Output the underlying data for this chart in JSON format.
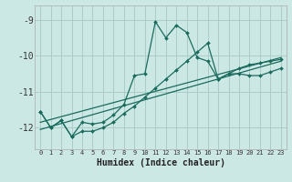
{
  "xlabel": "Humidex (Indice chaleur)",
  "bg_color": "#cce8e4",
  "line_color": "#1a6b5e",
  "grid_color": "#aaccc8",
  "xlim": [
    -0.5,
    23.5
  ],
  "ylim": [
    -12.6,
    -8.6
  ],
  "yticks": [
    -12,
    -11,
    -10,
    -9
  ],
  "xticks": [
    0,
    1,
    2,
    3,
    4,
    5,
    6,
    7,
    8,
    9,
    10,
    11,
    12,
    13,
    14,
    15,
    16,
    17,
    18,
    19,
    20,
    21,
    22,
    23
  ],
  "series1_x": [
    0,
    1,
    2,
    3,
    4,
    5,
    6,
    7,
    8,
    9,
    10,
    11,
    12,
    13,
    14,
    15,
    16,
    17,
    18,
    19,
    20,
    21,
    22,
    23
  ],
  "series1_y": [
    -11.55,
    -12.0,
    -11.8,
    -12.25,
    -11.85,
    -11.9,
    -11.85,
    -11.65,
    -11.35,
    -10.55,
    -10.5,
    -9.05,
    -9.5,
    -9.15,
    -9.35,
    -10.05,
    -10.15,
    -10.65,
    -10.5,
    -10.5,
    -10.55,
    -10.55,
    -10.45,
    -10.35
  ],
  "series2_x": [
    0,
    1,
    2,
    3,
    4,
    5,
    6,
    7,
    8,
    9,
    10,
    11,
    12,
    13,
    14,
    15,
    16,
    17,
    18,
    19,
    20,
    21,
    22,
    23
  ],
  "series2_y": [
    -11.55,
    -12.0,
    -11.8,
    -12.25,
    -12.1,
    -12.1,
    -12.0,
    -11.85,
    -11.6,
    -11.4,
    -11.15,
    -10.9,
    -10.65,
    -10.4,
    -10.15,
    -9.9,
    -9.65,
    -10.65,
    -10.5,
    -10.35,
    -10.25,
    -10.2,
    -10.15,
    -10.1
  ],
  "trend1_x": [
    0,
    23
  ],
  "trend1_y": [
    -11.85,
    -10.05
  ],
  "trend2_x": [
    0,
    23
  ],
  "trend2_y": [
    -12.05,
    -10.15
  ]
}
